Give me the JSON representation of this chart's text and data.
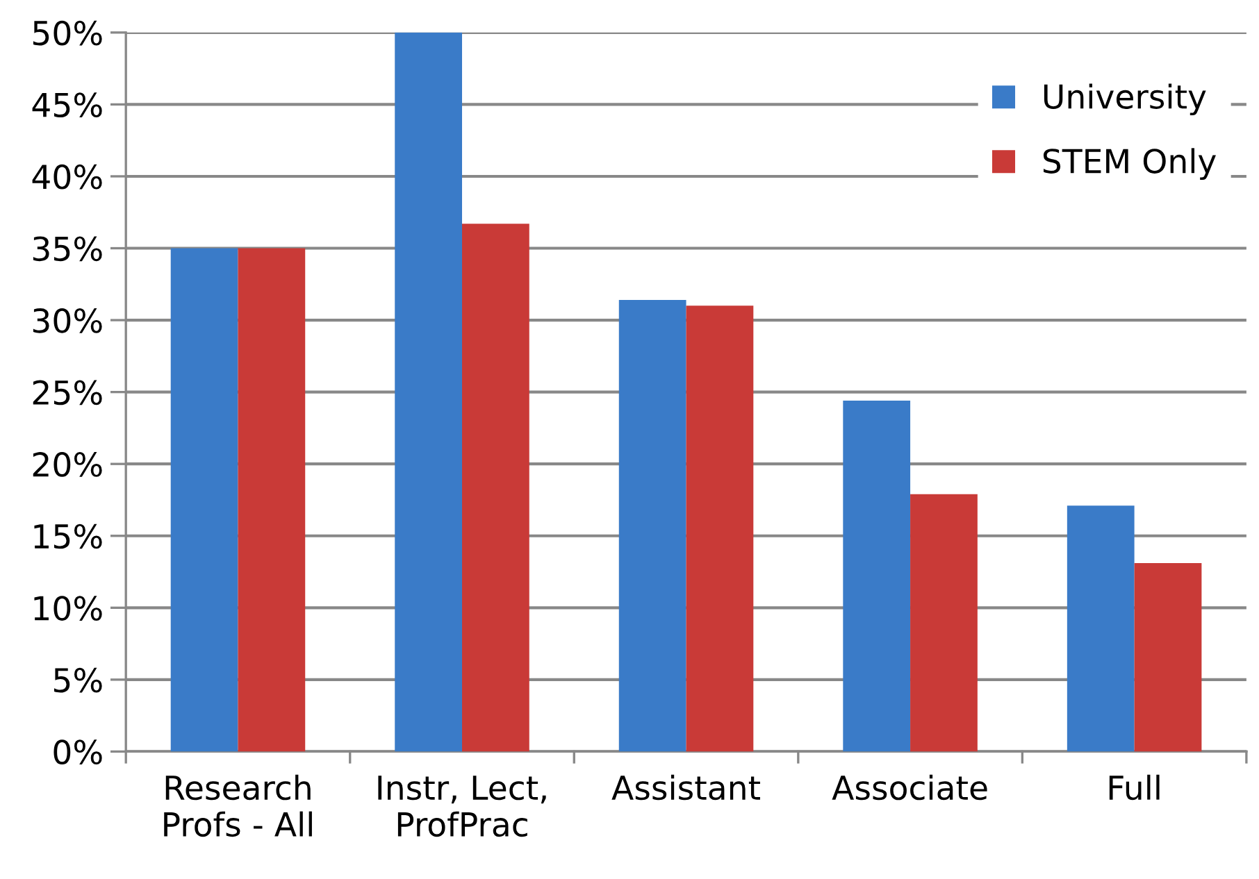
{
  "chart_data": {
    "type": "bar",
    "categories": [
      "Research\nProfs - All",
      "Instr, Lect,\nProfPrac",
      "Assistant",
      "Associate",
      "Full"
    ],
    "series": [
      {
        "name": "University",
        "color": "#3a7bc8",
        "values": [
          35,
          50,
          31.4,
          24.4,
          17.1
        ]
      },
      {
        "name": "STEM Only",
        "color": "#c93a37",
        "values": [
          35,
          36.7,
          31.0,
          17.9,
          13.1
        ]
      }
    ],
    "ylim": [
      0,
      50
    ],
    "yticks": [
      {
        "value": 0,
        "label": "0%"
      },
      {
        "value": 5,
        "label": "5%"
      },
      {
        "value": 10,
        "label": "10%"
      },
      {
        "value": 15,
        "label": "15%"
      },
      {
        "value": 20,
        "label": "20%"
      },
      {
        "value": 25,
        "label": "25%"
      },
      {
        "value": 30,
        "label": "30%"
      },
      {
        "value": 35,
        "label": "35%"
      },
      {
        "value": 40,
        "label": "40%"
      },
      {
        "value": 45,
        "label": "45%"
      },
      {
        "value": 50,
        "label": "50%"
      }
    ],
    "grid": "y",
    "legend": "top right"
  }
}
